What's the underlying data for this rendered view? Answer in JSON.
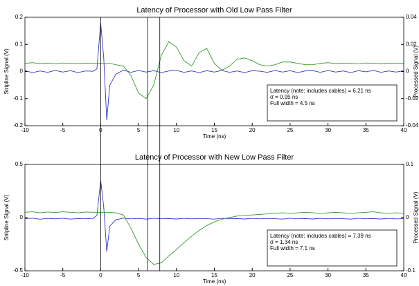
{
  "chart_data": [
    {
      "type": "line",
      "title": "Latency of Processor with Old Low Pass Filter",
      "xlabel": "Time (ns)",
      "ylabel": "Stripline Signal (V)",
      "y2label": "Processed Signal (V)",
      "xlim": [
        -10,
        40
      ],
      "xticks": [
        -10,
        -5,
        0,
        5,
        10,
        15,
        20,
        25,
        30,
        35,
        40
      ],
      "ylim": [
        -0.2,
        0.2
      ],
      "yticks": [
        -0.2,
        -0.1,
        0,
        0.1,
        0.2
      ],
      "y2lim": [
        -0.04,
        0.04
      ],
      "y2ticks": [
        -0.04,
        -0.02,
        0,
        0.02,
        0.04
      ],
      "grid": false,
      "vlines": [
        0,
        6.2,
        7.8
      ],
      "annotation": [
        "Latency (note: includes cables) = 6.21 ns",
        "σ = 0.95 ns",
        "Full width = 4.5 ns"
      ],
      "x": [
        -10,
        -9,
        -8,
        -7,
        -6,
        -5,
        -4,
        -3,
        -2,
        -1,
        -0.5,
        0,
        0.4,
        0.8,
        1.2,
        2,
        3,
        4,
        5,
        6,
        7,
        8,
        9,
        10,
        11,
        12,
        13,
        14,
        15,
        16,
        17,
        18,
        19,
        20,
        21,
        22,
        23,
        24,
        25,
        26,
        27,
        28,
        29,
        30,
        31,
        32,
        33,
        34,
        35,
        36,
        37,
        38,
        39,
        40
      ],
      "series": [
        {
          "color": "#3333cc",
          "values": [
            0.003,
            -0.004,
            0.002,
            -0.003,
            0.004,
            -0.002,
            0.003,
            -0.004,
            0.002,
            0.001,
            0.01,
            0.18,
            0.05,
            -0.18,
            -0.05,
            -0.01,
            0.005,
            -0.003,
            0.004,
            -0.002,
            0.003,
            -0.004,
            0.002,
            0.004,
            -0.003,
            0.002,
            -0.004,
            0.003,
            -0.002,
            0.004,
            -0.003,
            0.002,
            -0.004,
            0.003,
            0.001,
            -0.003,
            0.004,
            -0.002,
            0.003,
            -0.004,
            0.002,
            0.003,
            -0.003,
            0.004,
            -0.002,
            0.002,
            -0.004,
            0.003,
            -0.001,
            0.004,
            -0.003,
            0.002,
            -0.002,
            0.003
          ]
        },
        {
          "color": "#339933",
          "axis": "y2",
          "values": [
            0.006,
            0.0065,
            0.0058,
            0.0062,
            0.0057,
            0.0063,
            0.006,
            0.0058,
            0.0062,
            0.006,
            0.006,
            0.006,
            0.006,
            0.006,
            0.006,
            0.005,
            0.004,
            -0.003,
            -0.016,
            -0.02,
            -0.01,
            0.012,
            0.022,
            0.018,
            0.008,
            0.004,
            0.014,
            0.017,
            0.006,
            0.001,
            0.004,
            0.009,
            0.01,
            0.008,
            0.005,
            0.004,
            0.005,
            0.007,
            0.007,
            0.006,
            0.005,
            0.005,
            0.006,
            0.0065,
            0.0058,
            0.0062,
            0.006,
            0.0057,
            0.0063,
            0.006,
            0.0058,
            0.0062,
            0.006,
            0.0061
          ]
        }
      ]
    },
    {
      "type": "line",
      "title": "Latency of Processor with New Low Pass Filter",
      "xlabel": "Time (ns)",
      "ylabel": "Stripline Signal (V)",
      "y2label": "Processed Signal (V)",
      "xlim": [
        -10,
        40
      ],
      "xticks": [
        -10,
        -5,
        0,
        5,
        10,
        15,
        20,
        25,
        30,
        35,
        40
      ],
      "ylim": [
        -0.5,
        0.5
      ],
      "yticks": [
        -0.5,
        0,
        0.5
      ],
      "y2lim": [
        -0.1,
        0.1
      ],
      "y2ticks": [
        -0.1,
        0,
        0.1
      ],
      "grid": false,
      "vlines": [
        0,
        6.2,
        7.8
      ],
      "annotation": [
        "Latency (note: includes cables) = 7.39 ns",
        "σ = 1.34 ns",
        "Full width = 7.1 ns"
      ],
      "x": [
        -10,
        -9,
        -8,
        -7,
        -6,
        -5,
        -4,
        -3,
        -2,
        -1,
        -0.5,
        0,
        0.4,
        0.8,
        1.2,
        2,
        3,
        4,
        5,
        6,
        7,
        8,
        9,
        10,
        11,
        12,
        13,
        14,
        15,
        16,
        17,
        18,
        19,
        20,
        21,
        22,
        23,
        24,
        25,
        26,
        27,
        28,
        29,
        30,
        31,
        32,
        33,
        34,
        35,
        36,
        37,
        38,
        39,
        40
      ],
      "series": [
        {
          "color": "#3333cc",
          "values": [
            -0.01,
            -0.005,
            -0.015,
            -0.008,
            -0.012,
            -0.006,
            -0.014,
            -0.009,
            -0.011,
            -0.007,
            0.02,
            0.35,
            0.1,
            -0.32,
            -0.08,
            -0.02,
            -0.005,
            -0.012,
            -0.008,
            -0.014,
            -0.006,
            -0.011,
            -0.009,
            -0.013,
            -0.007,
            -0.012,
            -0.008,
            -0.01,
            -0.014,
            -0.006,
            -0.011,
            -0.009,
            -0.013,
            -0.007,
            -0.012,
            -0.008,
            -0.01,
            -0.014,
            -0.006,
            -0.011,
            -0.009,
            -0.013,
            -0.007,
            -0.012,
            -0.008,
            -0.01,
            -0.014,
            -0.006,
            -0.011,
            -0.009,
            -0.013,
            -0.007,
            -0.012,
            -0.01
          ]
        },
        {
          "color": "#339933",
          "axis": "y2",
          "values": [
            0.01,
            0.011,
            0.009,
            0.0105,
            0.0095,
            0.011,
            0.01,
            0.009,
            0.0105,
            0.01,
            0.01,
            0.01,
            0.01,
            0.01,
            0.01,
            0.009,
            0.005,
            -0.02,
            -0.05,
            -0.075,
            -0.088,
            -0.085,
            -0.072,
            -0.06,
            -0.047,
            -0.035,
            -0.024,
            -0.015,
            -0.008,
            -0.003,
            0.0,
            0.003,
            0.004,
            0.005,
            0.006,
            0.007,
            0.008,
            0.009,
            0.008,
            0.009,
            0.01,
            0.009,
            0.008,
            0.009,
            0.01,
            0.009,
            0.008,
            0.009,
            0.01,
            0.011,
            0.009,
            0.008,
            0.009,
            0.008
          ]
        }
      ]
    }
  ]
}
